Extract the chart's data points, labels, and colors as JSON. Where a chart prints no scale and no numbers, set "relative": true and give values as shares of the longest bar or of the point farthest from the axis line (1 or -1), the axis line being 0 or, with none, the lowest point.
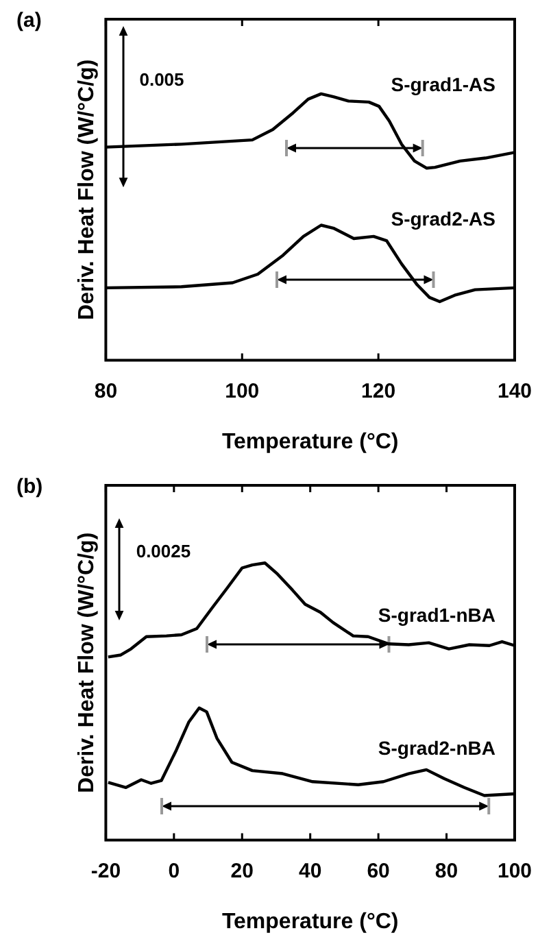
{
  "chart_data": [
    {
      "type": "line",
      "title": "(a)",
      "relative": true,
      "xlabel": "Temperature (°C)",
      "ylabel": "Deriv. Heat Flow (W/°C/g)",
      "xlim": [
        80,
        140
      ],
      "xticks": [
        80,
        100,
        120,
        140
      ],
      "annotations": [
        "0.005"
      ],
      "series": [
        {
          "name": "S-grad1-AS",
          "color": "#000000",
          "x": [
            80,
            91.1,
            101.5,
            104.5,
            107.5,
            109.7,
            111.6,
            113.4,
            115.6,
            118.6,
            120.1,
            121.6,
            123.4,
            125.3,
            127.1,
            128.3,
            132,
            135.7,
            140
          ],
          "values": [
            0.8,
            0.811,
            0.827,
            0.866,
            0.929,
            0.98,
            1.0,
            0.989,
            0.973,
            0.969,
            0.953,
            0.898,
            0.811,
            0.748,
            0.721,
            0.724,
            0.748,
            0.759,
            0.78
          ]
        },
        {
          "name": "S-grad2-AS",
          "color": "#000000",
          "x": [
            80,
            91.1,
            98.6,
            102.3,
            106,
            109,
            111.6,
            113.4,
            116.4,
            119.3,
            121.2,
            123.4,
            125.7,
            127.5,
            129,
            131.2,
            134.2,
            140
          ],
          "values": [
            0.272,
            0.276,
            0.291,
            0.323,
            0.394,
            0.465,
            0.507,
            0.496,
            0.457,
            0.465,
            0.449,
            0.362,
            0.283,
            0.236,
            0.22,
            0.244,
            0.265,
            0.272
          ]
        }
      ]
    },
    {
      "type": "line",
      "title": "(b)",
      "relative": true,
      "xlabel": "Temperature (°C)",
      "ylabel": "Deriv. Heat Flow (W/°C/g)",
      "xlim": [
        -20,
        100
      ],
      "xticks": [
        -20,
        0,
        20,
        40,
        60,
        80,
        100
      ],
      "annotations": [
        "0.0025"
      ],
      "series": [
        {
          "name": "S-grad1-nBA",
          "color": "#000000",
          "x": [
            -19.3,
            -15.6,
            -12.6,
            -8.1,
            -2.2,
            2.2,
            6.7,
            11.1,
            15.6,
            20,
            23,
            26.7,
            30.4,
            34.8,
            38.5,
            43,
            46.7,
            52.6,
            57,
            63,
            68.9,
            74.8,
            80.7,
            86.7,
            92.6,
            96.3,
            100
          ],
          "values": [
            0.661,
            0.668,
            0.69,
            0.734,
            0.737,
            0.741,
            0.763,
            0.836,
            0.909,
            0.982,
            0.993,
            1.0,
            0.96,
            0.902,
            0.851,
            0.822,
            0.785,
            0.737,
            0.734,
            0.708,
            0.705,
            0.712,
            0.69,
            0.705,
            0.702,
            0.716,
            0.702
          ]
        },
        {
          "name": "S-grad2-nBA",
          "color": "#000000",
          "x": [
            -19.3,
            -14.1,
            -9.6,
            -6.7,
            -3.7,
            0.7,
            4.4,
            7.4,
            9.6,
            12.6,
            17,
            23,
            31.9,
            40.7,
            54.1,
            61.5,
            68.9,
            74.1,
            79.3,
            85.2,
            91.1,
            100
          ],
          "values": [
            0.208,
            0.19,
            0.218,
            0.205,
            0.215,
            0.325,
            0.427,
            0.477,
            0.463,
            0.368,
            0.281,
            0.251,
            0.24,
            0.211,
            0.2,
            0.211,
            0.24,
            0.254,
            0.222,
            0.19,
            0.161,
            0.167
          ]
        }
      ]
    }
  ]
}
